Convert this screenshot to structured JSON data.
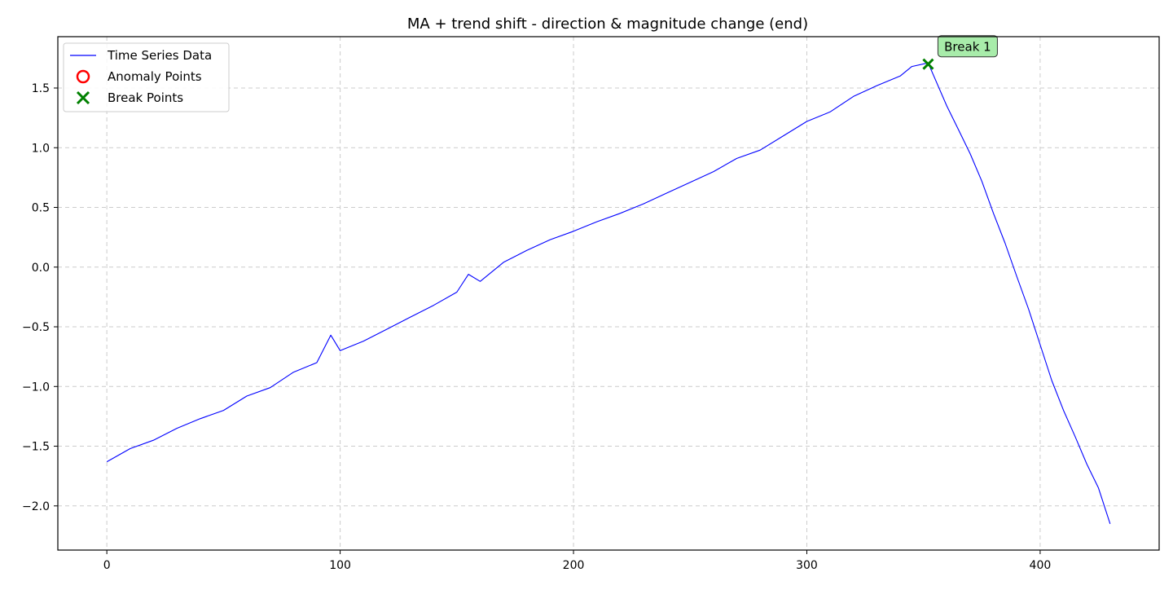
{
  "chart_data": {
    "type": "line",
    "title": "MA + trend shift - direction & magnitude change (end)",
    "xlabel": "",
    "ylabel": "",
    "xlim": [
      -21,
      451
    ],
    "ylim": [
      -2.37,
      1.93
    ],
    "x_ticks": [
      0,
      100,
      200,
      300,
      400
    ],
    "y_ticks": [
      -2.0,
      -1.5,
      -1.0,
      -0.5,
      0.0,
      0.5,
      1.0,
      1.5
    ],
    "x_tick_labels": [
      "0",
      "100",
      "200",
      "300",
      "400"
    ],
    "y_tick_labels": [
      "−2.0",
      "−1.5",
      "−1.0",
      "−0.5",
      "0.0",
      "0.5",
      "1.0",
      "1.5"
    ],
    "grid": true,
    "legend_position": "upper-left",
    "legend": [
      {
        "label": "Time Series Data",
        "marker": "line",
        "color": "#0000ff"
      },
      {
        "label": "Anomaly Points",
        "marker": "circle",
        "color": "#ff0000"
      },
      {
        "label": "Break Points",
        "marker": "x",
        "color": "#008000"
      }
    ],
    "series": [
      {
        "name": "Time Series Data",
        "color": "#0000ff",
        "x": [
          0,
          10,
          20,
          30,
          40,
          50,
          60,
          70,
          80,
          90,
          96,
          100,
          110,
          120,
          130,
          140,
          150,
          155,
          160,
          170,
          180,
          190,
          200,
          210,
          220,
          230,
          240,
          250,
          260,
          270,
          280,
          290,
          300,
          310,
          320,
          330,
          340,
          345,
          352,
          360,
          365,
          370,
          375,
          380,
          385,
          390,
          395,
          400,
          405,
          410,
          415,
          420,
          425,
          430
        ],
        "y": [
          -1.63,
          -1.52,
          -1.45,
          -1.35,
          -1.27,
          -1.2,
          -1.08,
          -1.01,
          -0.88,
          -0.8,
          -0.57,
          -0.7,
          -0.62,
          -0.52,
          -0.42,
          -0.32,
          -0.21,
          -0.06,
          -0.12,
          0.04,
          0.14,
          0.23,
          0.3,
          0.38,
          0.45,
          0.53,
          0.62,
          0.71,
          0.8,
          0.91,
          0.98,
          1.1,
          1.22,
          1.3,
          1.43,
          1.52,
          1.6,
          1.68,
          1.71,
          1.35,
          1.15,
          0.95,
          0.72,
          0.45,
          0.2,
          -0.08,
          -0.35,
          -0.65,
          -0.95,
          -1.2,
          -1.42,
          -1.65,
          -1.85,
          -2.15
        ]
      }
    ],
    "break_points": [
      {
        "x": 352,
        "y": 1.7,
        "label": "Break 1"
      }
    ],
    "anomaly_points": []
  }
}
